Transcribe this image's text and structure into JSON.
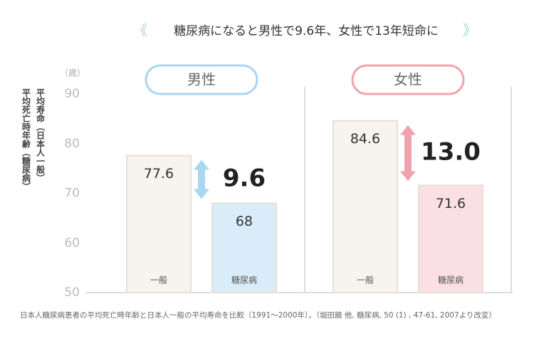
{
  "title": "糖尿病になると男性で9.6年、女性で13年短命に",
  "y_axis_label": [
    "平均寿命（日本人一般）",
    "平均死亡時年齢（糖尿病）"
  ],
  "footnote": "日本人糖尿病患者の平均死亡時年齢と日本人一般の平均寿命を比較（1991〜2000年）。（堀田饒 他, 糖尿病, 50 (1) , 47-61, 2007より改変）",
  "chart_data": [
    {
      "type": "bar",
      "title": "男性",
      "categories": [
        "一般",
        "糖尿病"
      ],
      "values": [
        77.6,
        68
      ],
      "colors": [
        "#f7f3ee",
        "#d8edf9"
      ],
      "annotation": "9.6",
      "arrow_color": "#a9d6f0",
      "y_unit": "（歳）",
      "ylim": [
        50,
        90
      ],
      "yticks": [
        50,
        60,
        70,
        80,
        90
      ]
    },
    {
      "type": "bar",
      "title": "女性",
      "categories": [
        "一般",
        "糖尿病"
      ],
      "values": [
        84.6,
        71.6
      ],
      "colors": [
        "#f7f3ee",
        "#fae0e5"
      ],
      "annotation": "13.0",
      "arrow_color": "#f0a3ad"
    }
  ]
}
